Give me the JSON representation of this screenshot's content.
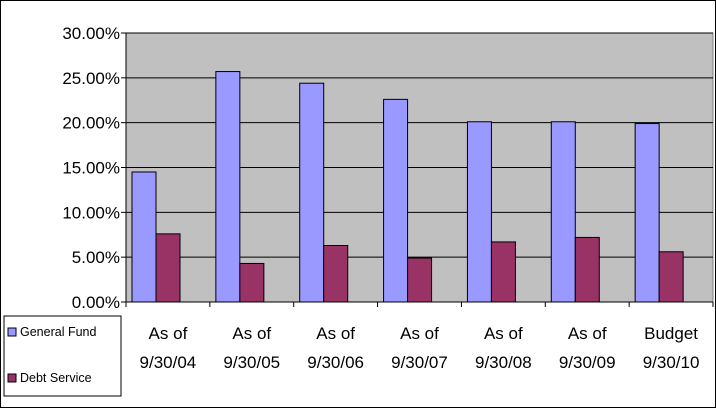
{
  "chart_data": {
    "type": "bar",
    "title": "",
    "xlabel": "",
    "ylabel": "",
    "ylim": [
      0,
      0.3
    ],
    "y_ticks": [
      0,
      0.05,
      0.1,
      0.15,
      0.2,
      0.25,
      0.3
    ],
    "y_tick_labels": [
      "0.00%",
      "5.00%",
      "10.00%",
      "15.00%",
      "20.00%",
      "25.00%",
      "30.00%"
    ],
    "grid": true,
    "legend_position": "bottom-left",
    "plot_background": "#c0c0c0",
    "categories": [
      [
        "As of",
        "9/30/04"
      ],
      [
        "As of",
        "9/30/05"
      ],
      [
        "As of",
        "9/30/06"
      ],
      [
        "As of",
        "9/30/07"
      ],
      [
        "As of",
        "9/30/08"
      ],
      [
        "As of",
        "9/30/09"
      ],
      [
        "Budget",
        "9/30/10"
      ]
    ],
    "series": [
      {
        "name": "General Fund",
        "color": "#9999ff",
        "values": [
          0.145,
          0.257,
          0.244,
          0.226,
          0.201,
          0.201,
          0.199
        ]
      },
      {
        "name": "Debt Service",
        "color": "#993366",
        "values": [
          0.076,
          0.043,
          0.063,
          0.049,
          0.067,
          0.072,
          0.056
        ]
      }
    ]
  }
}
